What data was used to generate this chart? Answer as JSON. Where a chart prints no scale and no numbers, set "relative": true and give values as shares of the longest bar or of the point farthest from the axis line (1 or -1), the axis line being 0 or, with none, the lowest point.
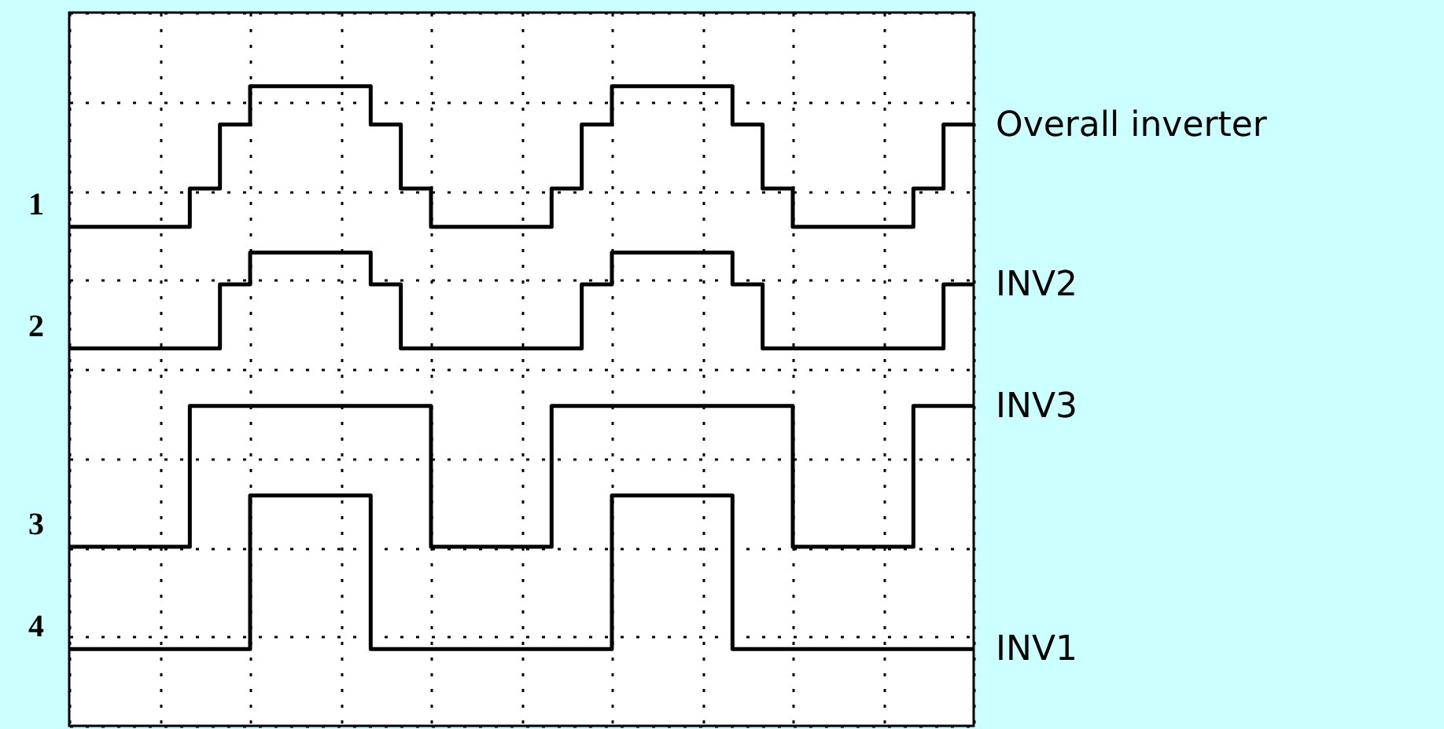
{
  "chart_data": {
    "type": "step",
    "relative": true,
    "grid": true,
    "categories": [
      null,
      null,
      null,
      null,
      null,
      null,
      null,
      null,
      null,
      null,
      null,
      null,
      null,
      null,
      null,
      null,
      null,
      null,
      null,
      null,
      null,
      null,
      null,
      null,
      null,
      null,
      null,
      null,
      null,
      null,
      null
    ],
    "series": [
      {
        "name": "Overall inverter",
        "color": "#000000",
        "values": [
          0.78,
          0.78,
          0.78,
          0.78,
          0.84,
          0.94,
          1,
          1,
          1,
          1,
          0.94,
          0.84,
          0.78,
          0.78,
          0.78,
          0.78,
          0.84,
          0.94,
          1,
          1,
          1,
          1,
          0.94,
          0.84,
          0.78,
          0.78,
          0.78,
          0.78,
          0.84,
          0.94,
          0.94
        ]
      },
      {
        "name": "INV2",
        "color": "#000000",
        "values": [
          0.59,
          0.59,
          0.59,
          0.59,
          0.59,
          0.69,
          0.74,
          0.74,
          0.74,
          0.74,
          0.69,
          0.59,
          0.59,
          0.59,
          0.59,
          0.59,
          0.59,
          0.69,
          0.74,
          0.74,
          0.74,
          0.74,
          0.69,
          0.59,
          0.59,
          0.59,
          0.59,
          0.59,
          0.59,
          0.69,
          0.69
        ]
      },
      {
        "name": "INV3",
        "color": "#000000",
        "values": [
          0.28,
          0.28,
          0.28,
          0.28,
          0.5,
          0.5,
          0.5,
          0.5,
          0.5,
          0.5,
          0.5,
          0.5,
          0.28,
          0.28,
          0.28,
          0.28,
          0.5,
          0.5,
          0.5,
          0.5,
          0.5,
          0.5,
          0.5,
          0.5,
          0.28,
          0.28,
          0.28,
          0.28,
          0.5,
          0.5,
          0.5
        ]
      },
      {
        "name": "INV1",
        "color": "#000000",
        "values": [
          0.12,
          0.12,
          0.12,
          0.12,
          0.12,
          0.12,
          0.36,
          0.36,
          0.36,
          0.36,
          0.12,
          0.12,
          0.12,
          0.12,
          0.12,
          0.12,
          0.12,
          0.12,
          0.36,
          0.36,
          0.36,
          0.36,
          0.12,
          0.12,
          0.12,
          0.12,
          0.12,
          0.12,
          0.12,
          0.12,
          0.12
        ]
      }
    ],
    "annotations": [
      "1",
      "2",
      "3",
      "4"
    ]
  }
}
